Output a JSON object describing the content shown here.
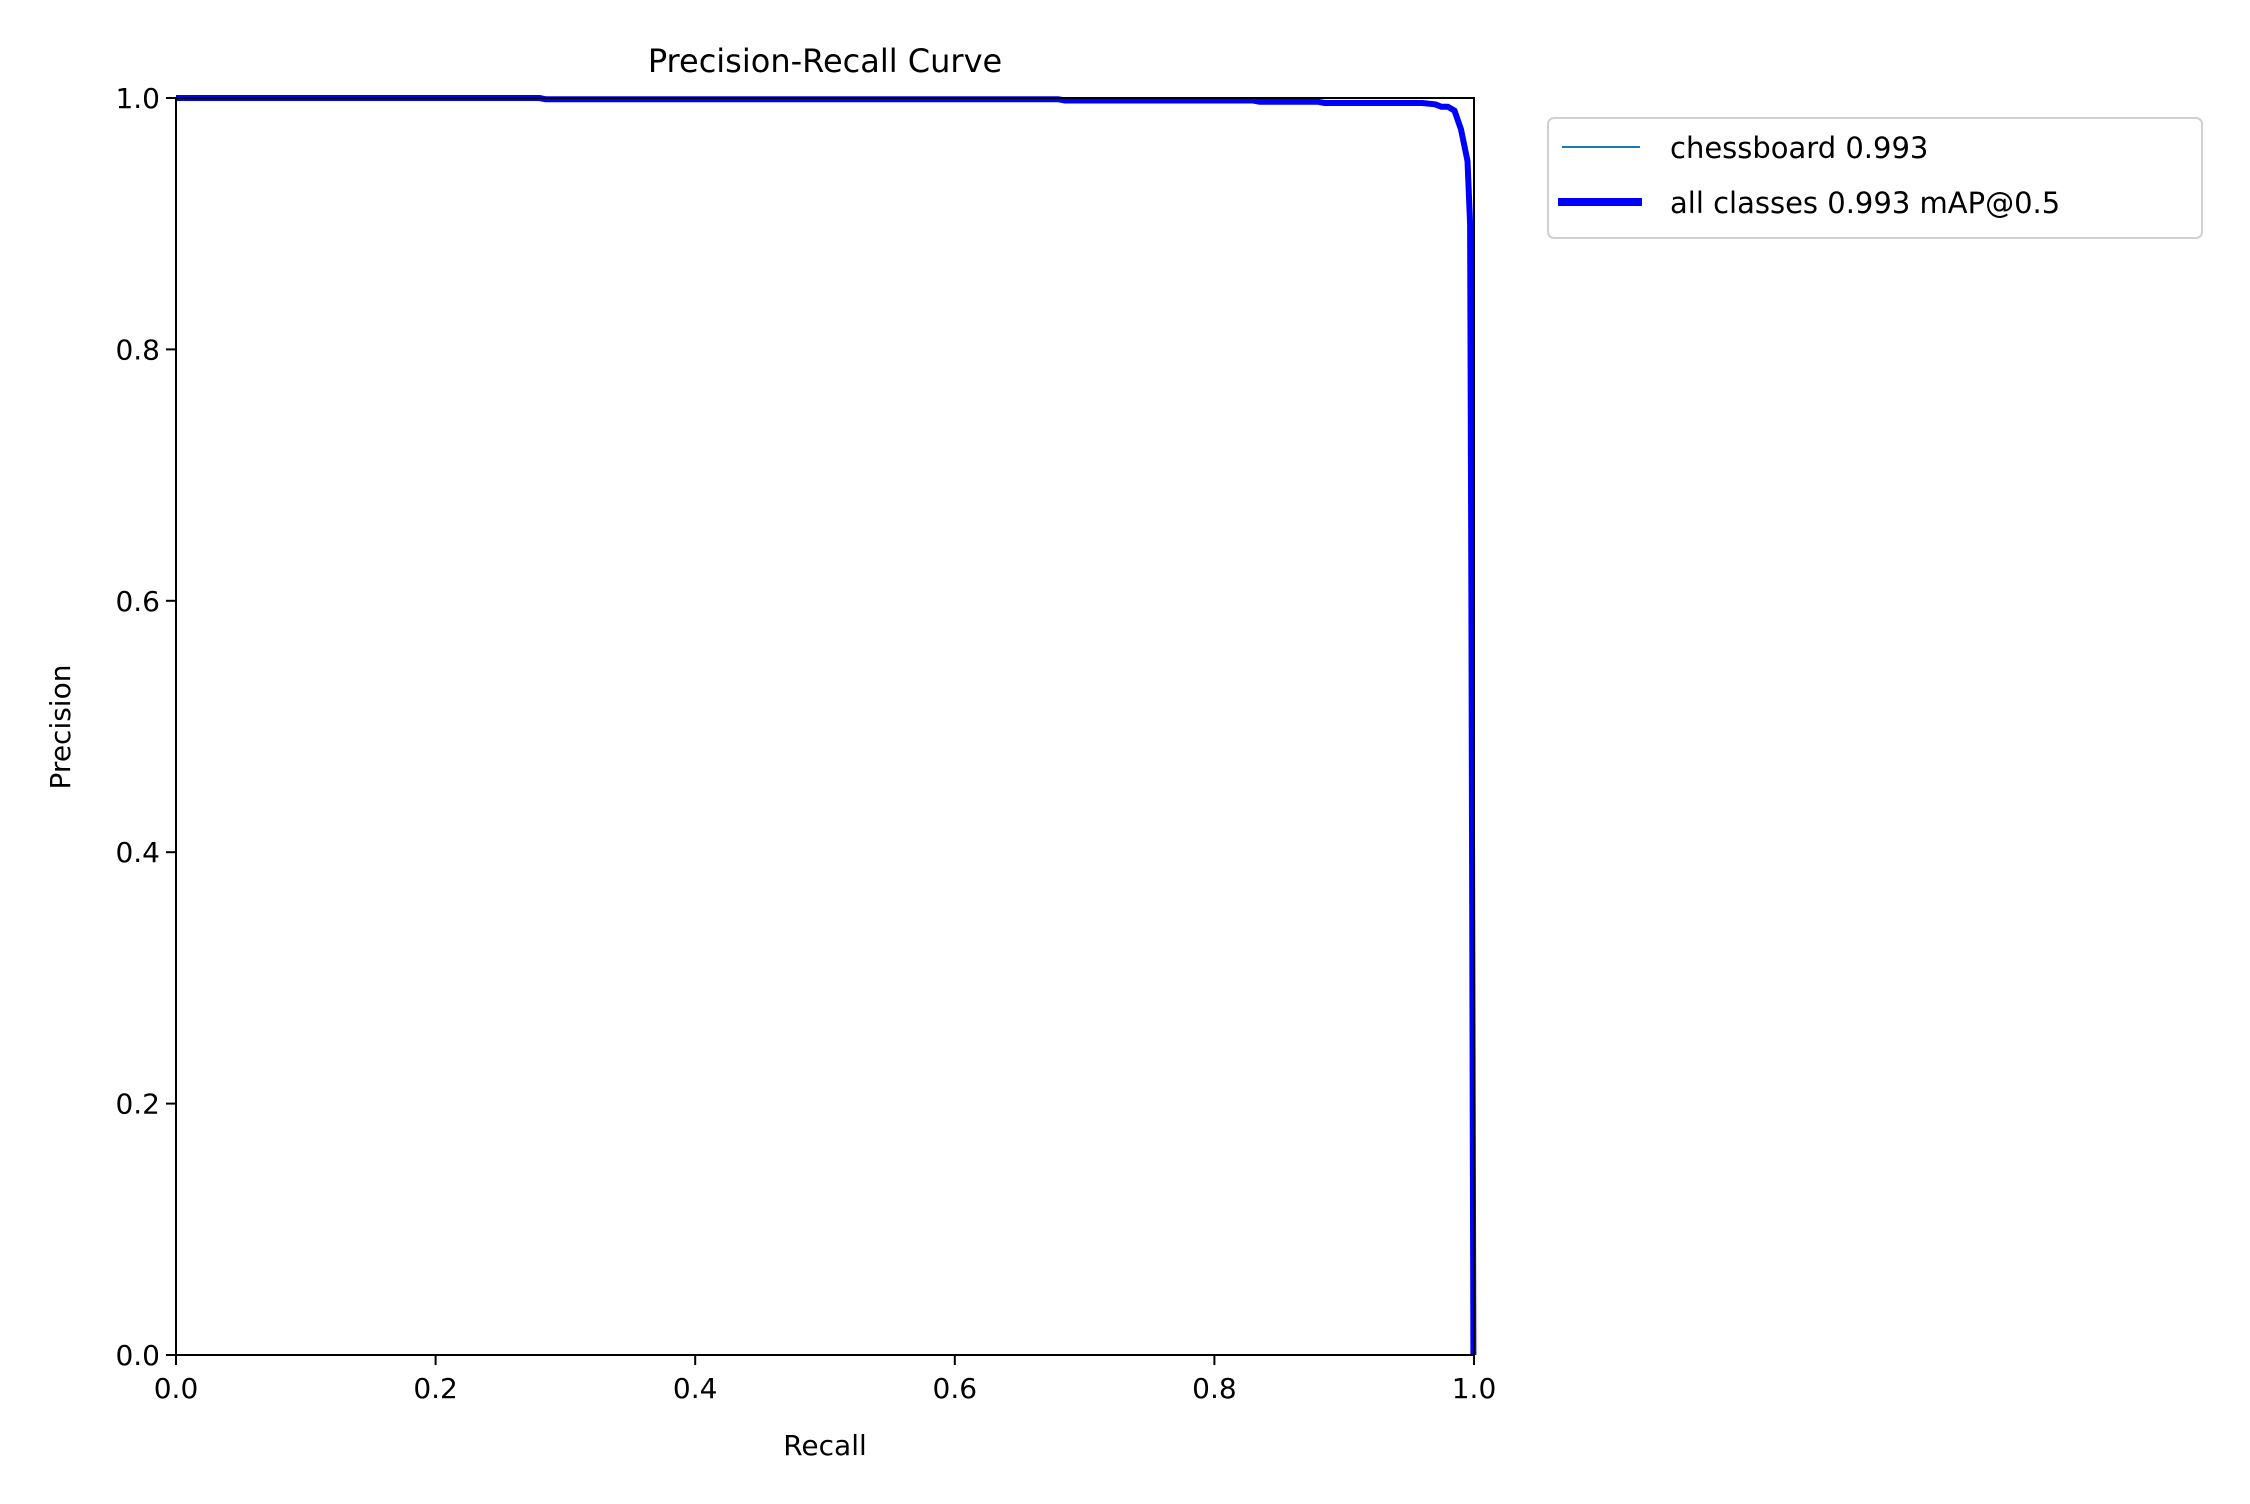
{
  "chart_data": {
    "type": "line",
    "title": "Precision-Recall Curve",
    "xlabel": "Recall",
    "ylabel": "Precision",
    "xlim": [
      0,
      1
    ],
    "ylim": [
      0,
      1
    ],
    "xticks": [
      "0.0",
      "0.2",
      "0.4",
      "0.6",
      "0.8",
      "1.0"
    ],
    "yticks": [
      "0.0",
      "0.2",
      "0.4",
      "0.6",
      "0.8",
      "1.0"
    ],
    "grid": false,
    "legend_position": "outside-top-right",
    "series": [
      {
        "name": "chessboard 0.993",
        "color": "#1f77b4",
        "x": [
          0,
          0.28,
          0.285,
          0.68,
          0.685,
          0.83,
          0.835,
          0.88,
          0.885,
          0.96,
          0.97,
          0.975,
          0.98,
          0.985,
          0.99,
          0.993,
          0.995,
          0.997,
          0.998,
          0.999,
          0.9995
        ],
        "y": [
          1.0,
          1.0,
          0.999,
          0.999,
          0.998,
          0.998,
          0.997,
          0.997,
          0.996,
          0.996,
          0.995,
          0.993,
          0.993,
          0.99,
          0.975,
          0.96,
          0.95,
          0.9,
          0.6,
          0.2,
          0.0
        ]
      },
      {
        "name": "all classes 0.993 mAP@0.5",
        "color": "#0000ff",
        "x": [
          0,
          0.28,
          0.285,
          0.68,
          0.685,
          0.83,
          0.835,
          0.88,
          0.885,
          0.96,
          0.97,
          0.975,
          0.98,
          0.985,
          0.99,
          0.993,
          0.995,
          0.997,
          0.998,
          0.999,
          0.9995
        ],
        "y": [
          1.0,
          1.0,
          0.999,
          0.999,
          0.998,
          0.998,
          0.997,
          0.997,
          0.996,
          0.996,
          0.995,
          0.993,
          0.993,
          0.99,
          0.975,
          0.96,
          0.95,
          0.9,
          0.6,
          0.2,
          0.0
        ]
      }
    ]
  }
}
